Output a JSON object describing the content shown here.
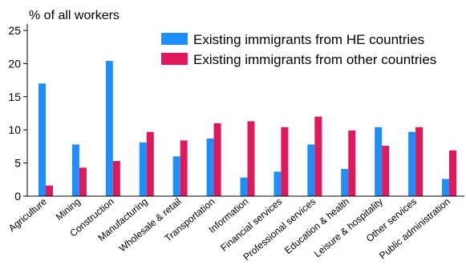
{
  "chart_data": {
    "type": "bar",
    "ylabel": "% of all workers",
    "ylim": [
      0,
      25
    ],
    "yticks": [
      0,
      5,
      10,
      15,
      20,
      25
    ],
    "legend_position": "top-right",
    "categories": [
      "Agriculture",
      "Mining",
      "Construction",
      "Manufacturing",
      "Wholesale & retail",
      "Transportation",
      "Information",
      "Financial services",
      "Professional services",
      "Education & health",
      "Leisure & hospitality",
      "Other services",
      "Public administration"
    ],
    "series": [
      {
        "name": "Existing immigrants from HE countries",
        "color": "#1f8fff",
        "values": [
          17.0,
          7.8,
          20.4,
          8.1,
          6.0,
          8.7,
          2.8,
          3.7,
          7.8,
          4.1,
          10.4,
          9.7,
          2.6
        ]
      },
      {
        "name": "Existing immigrants from other countries",
        "color": "#e0195a",
        "values": [
          1.6,
          4.3,
          5.3,
          9.7,
          8.4,
          11.0,
          11.3,
          10.4,
          12.0,
          9.9,
          7.6,
          10.4,
          6.9
        ]
      }
    ]
  }
}
